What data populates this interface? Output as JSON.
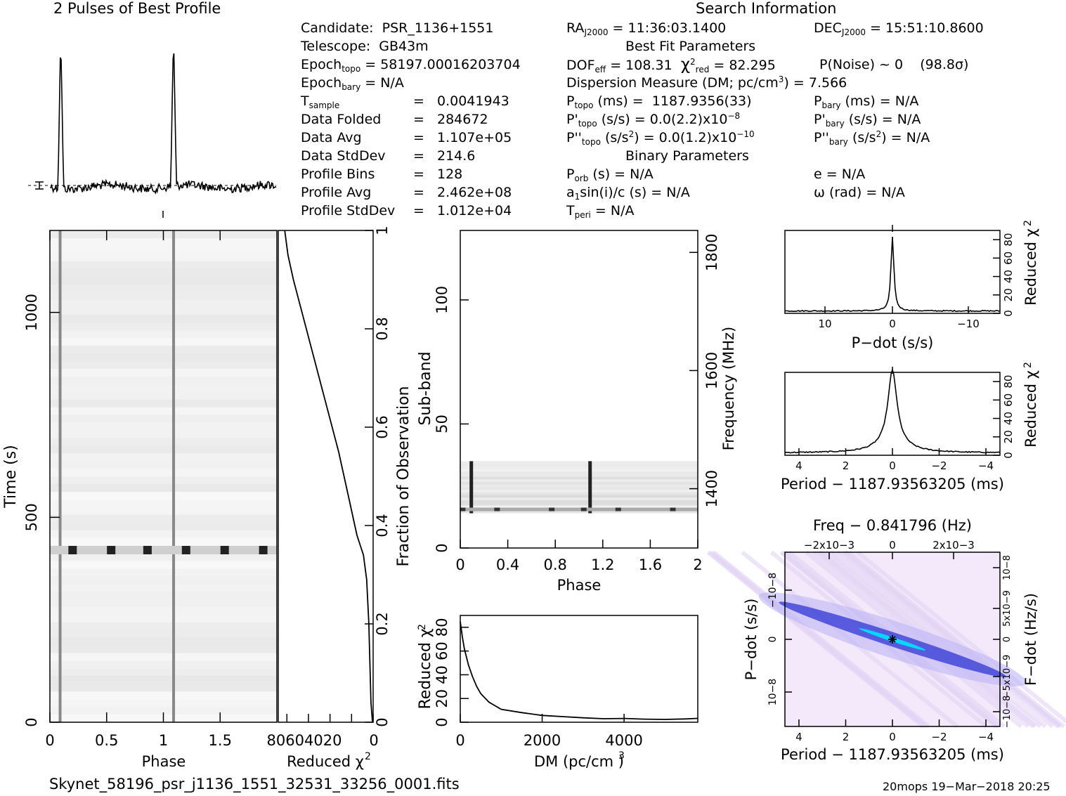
{
  "profile_title": "2 Pulses of Best Profile",
  "search_title": "Search Information",
  "candidate": {
    "candidate": "Candidate:  PSR_1136+1551",
    "telescope": "Telescope:  GB43m",
    "epoch_topo_label": "Epoch",
    "epoch_topo_sub": "topo",
    "epoch_topo_val": " = 58197.00016203704",
    "epoch_bary_label": "Epoch",
    "epoch_bary_sub": "bary",
    "epoch_bary_val": " = N/A",
    "tsample_label": "T",
    "tsample_sub": "sample",
    "tsample_eq": "=",
    "tsample_val": "0.0041943",
    "rows": [
      {
        "label": "Data Folded",
        "eq": "=",
        "val": "284672"
      },
      {
        "label": "Data Avg",
        "eq": "=",
        "val": "1.107e+05"
      },
      {
        "label": "Data StdDev",
        "eq": "=",
        "val": "214.6"
      },
      {
        "label": "Profile Bins",
        "eq": "=",
        "val": "128"
      },
      {
        "label": "Profile Avg",
        "eq": "=",
        "val": "2.462e+08"
      },
      {
        "label": "Profile StdDev",
        "eq": "=",
        "val": "1.012e+04"
      }
    ]
  },
  "search": {
    "ra_label": "RA",
    "ra_sub": "J2000",
    "ra_val": " = 11:36:03.1400",
    "dec_label": "DEC",
    "dec_sub": "J2000",
    "dec_val": " = 15:51:10.8600",
    "best_fit": "Best Fit Parameters",
    "dof_label": "DOF",
    "dof_sub": "eff",
    "dof_val": " = 108.31  ",
    "chi_sym": "χ",
    "chi_sup": "2",
    "chi_sub": "red",
    "chi_val": " = 82.295",
    "pnoise": "P(Noise) ~ 0    (98.8σ)",
    "dm_text": "Dispersion Measure (DM; pc/cm",
    "dm_sup": "3",
    "dm_val": ") = 7.566",
    "ptopo_label": "P",
    "ptopo_sub": "topo",
    "ptopo_val": " (ms) =  1187.9356(33)",
    "pbary_label": "P",
    "pbary_sub": "bary",
    "pbary_val": " (ms) = N/A",
    "pdtopo_label": "P'",
    "pdtopo_sub": "topo",
    "pdtopo_val": " (s/s) = 0.0(2.2)x10",
    "pdtopo_sup": "−8",
    "pdbary_label": "P'",
    "pdbary_sub": "bary",
    "pdbary_val": " (s/s) = N/A",
    "pddtopo_label": "P''",
    "pddtopo_sub": "topo",
    "pddtopo_mid": " (s/s",
    "pddtopo_sup1": "2",
    "pddtopo_val": ") = 0.0(1.2)x10",
    "pddtopo_sup2": "−10",
    "pddbary_label": "P''",
    "pddbary_sub": "bary",
    "pddbary_mid": " (s/s",
    "pddbary_sup": "2",
    "pddbary_val": ") = N/A",
    "binary": "Binary Parameters",
    "porb_label": "P",
    "porb_sub": "orb",
    "porb_val": " (s) = N/A",
    "e_val": "e = N/A",
    "a1_label": "a",
    "a1_sub": "1",
    "a1_val": "sin(i)/c (s) = N/A",
    "omega_val": "ω (rad) = N/A",
    "tperi_label": "T",
    "tperi_sub": "peri",
    "tperi_val": " = N/A"
  },
  "footer": {
    "filename": "Skynet_58196_psr_j1136_1551_32531_33256_0001.fits",
    "stamp": "20mops 19−Mar−2018 20:25"
  },
  "chart_data": [
    {
      "type": "line",
      "title": "2 Pulses of Best Profile",
      "xlim": [
        0,
        2
      ],
      "peaks_phase": [
        0.09,
        1.09
      ],
      "note_series": "normalized pulse profile, two rotations"
    },
    {
      "type": "heatmap",
      "xlabel": "Phase",
      "ylabel": "Time (s)",
      "xlim": [
        0,
        2
      ],
      "ylim": [
        0,
        1200
      ],
      "x_ticks": [
        "0",
        "0.5",
        "1",
        "1.5"
      ],
      "y_ticks": [
        "0",
        "500",
        "1000"
      ],
      "pulse_phase": [
        0.09,
        1.09
      ],
      "rfi_time_s": 420
    },
    {
      "type": "line",
      "xlabel": "Reduced χ2",
      "ylabel": "Fraction of Observation",
      "x_ticks": [
        "80",
        "60",
        "40",
        "20",
        "0"
      ],
      "y_ticks": [
        "0",
        "0.2",
        "0.4",
        "0.6",
        "0.8",
        "1"
      ],
      "x": [
        0.6,
        2,
        3,
        4,
        6,
        9,
        12,
        15,
        18,
        22,
        27,
        32,
        38,
        44,
        50,
        56,
        62,
        68,
        74,
        79,
        82
      ],
      "y": [
        0.0,
        0.04,
        0.12,
        0.2,
        0.29,
        0.34,
        0.36,
        0.38,
        0.41,
        0.45,
        0.5,
        0.55,
        0.6,
        0.65,
        0.7,
        0.75,
        0.8,
        0.85,
        0.9,
        0.95,
        1.0
      ]
    },
    {
      "type": "heatmap",
      "xlabel": "Phase",
      "ylabel": "Sub-band",
      "ylabel_right": "Frequency (MHz)",
      "xlim": [
        0,
        2
      ],
      "ylim": [
        0,
        128
      ],
      "x_ticks": [
        "0",
        "0.4",
        "0.8",
        "1.2",
        "1.6",
        "2"
      ],
      "y_ticks": [
        "0",
        "50",
        "100"
      ],
      "freq_ticks": [
        "1400",
        "1600",
        "1800"
      ],
      "data_subbands": [
        14,
        35
      ]
    },
    {
      "type": "line",
      "xlabel": "DM (pc/cm3)",
      "ylabel": "Reduced χ2",
      "xlim": [
        0,
        5800
      ],
      "ylim": [
        0,
        90
      ],
      "x_ticks": [
        "0",
        "2000",
        "4000"
      ],
      "y_ticks": [
        "0",
        "20",
        "40",
        "60",
        "80"
      ],
      "x": [
        0,
        50,
        100,
        200,
        300,
        400,
        500,
        700,
        1000,
        1500,
        2000,
        2500,
        3000,
        3500,
        4000,
        4500,
        5000,
        5500,
        5800
      ],
      "y": [
        85,
        72,
        62,
        48,
        38,
        30,
        24,
        17,
        11,
        8,
        6,
        5,
        3.5,
        3,
        3,
        2.5,
        2.5,
        3,
        3.5
      ]
    },
    {
      "type": "line",
      "xlabel": "P−dot (s/s)",
      "ylabel": "Reduced χ2",
      "x_ticks": [
        "10−8",
        "0",
        "−10−8"
      ],
      "y_ticks": [
        "0",
        "20",
        "40",
        "60",
        "80"
      ],
      "peak_value": 82
    },
    {
      "type": "line",
      "xlabel": "Period − 1187.93563205 (ms)",
      "ylabel": "Reduced χ2",
      "x_ticks": [
        "4",
        "2",
        "0",
        "−2",
        "−4"
      ],
      "y_ticks": [
        "0",
        "20",
        "40",
        "60",
        "80"
      ],
      "xlim": [
        4.6,
        -4.6
      ],
      "peak_value": 82
    },
    {
      "type": "heatmap",
      "xlabel": "Period − 1187.93563205 (ms)",
      "ylabel": "P−dot (s/s)",
      "top_label": "Freq − 0.841796 (Hz)",
      "right_label": "F−dot (Hz/s)",
      "x_ticks": [
        "4",
        "2",
        "0",
        "−2",
        "−4"
      ],
      "top_ticks": [
        "−2x10−3",
        "0",
        "2x10−3"
      ],
      "left_ticks": [
        "−10−8",
        "0",
        "10−8"
      ],
      "right_ticks": [
        "10−8",
        "5x10−9",
        "0",
        "−5x10−9",
        "−10−8"
      ]
    }
  ],
  "colors": {
    "grey_map": "#808080",
    "pdot_map_low": "#ffffff",
    "pdot_map_mid": "#6655ee",
    "pdot_map_high": "#00d8ff"
  }
}
